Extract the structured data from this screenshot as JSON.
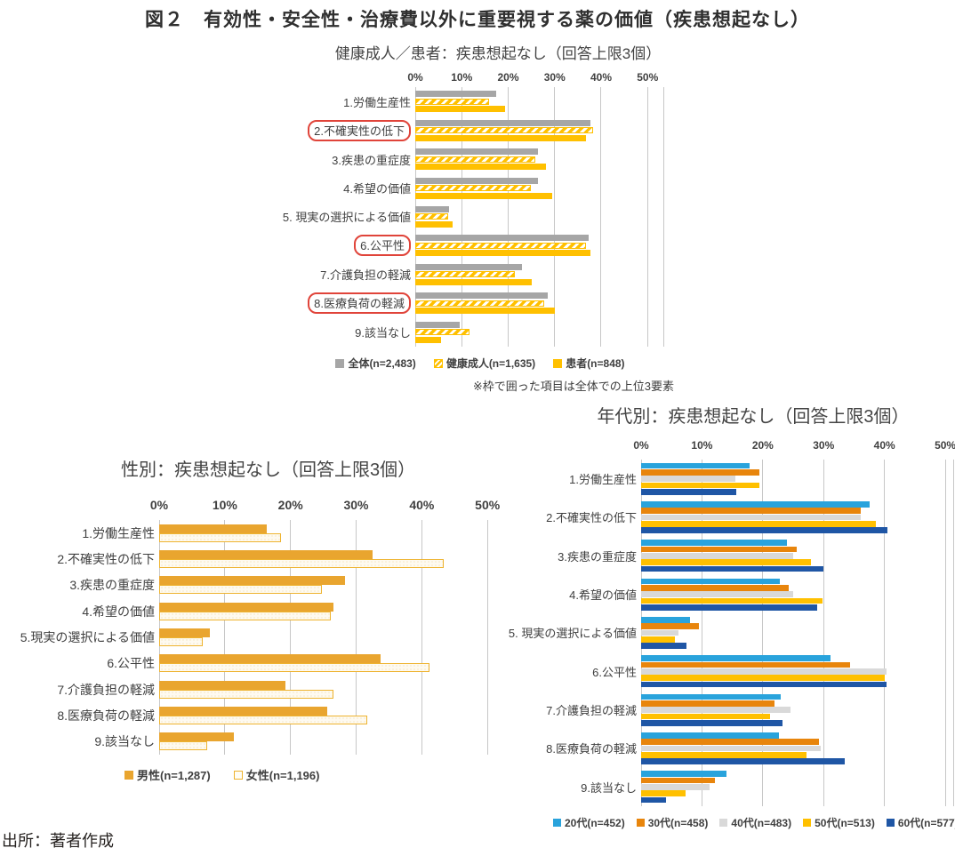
{
  "page": {
    "title": "図２　有効性・安全性・治療費以外に重要視する薬の価値（疾患想起なし）",
    "source": "出所：著者作成"
  },
  "colors": {
    "overall_gray": "#a6a6a6",
    "gold": "#ffc000",
    "male_gold": "#e9a52f",
    "female_border_gold": "#eeb32f",
    "age20_blue": "#29a3dc",
    "age30_orange": "#e8850c",
    "age40_gray": "#d9d9d9",
    "age50_gold": "#ffc000",
    "age60_blue": "#1f56a5",
    "highlight_box_red": "#e0443a",
    "gridline": "#c7c7c7"
  },
  "chart_data": [
    {
      "id": "adult-patient",
      "type": "bar",
      "orientation": "horizontal",
      "title": "健康成人／患者：疾患想起なし（回答上限3個）",
      "note": "※枠で囲った項目は全体での上位3要素",
      "categories": [
        "1.労働生産性",
        "2.不確実性の低下",
        "3.疾患の重症度",
        "4.希望の価値",
        "5. 現実の選択による価値",
        "6.公平性",
        "7.介護負担の軽減",
        "8.医療負荷の軽減",
        "9.該当なし"
      ],
      "boxed_categories": [
        "2.不確実性の低下",
        "6.公平性",
        "8.医療負荷の軽減"
      ],
      "axis": {
        "tick_labels": [
          "0%",
          "10%",
          "20%",
          "30%",
          "40%",
          "50%"
        ],
        "tick_values": [
          0,
          10,
          20,
          30,
          40,
          50
        ],
        "xlim": [
          0,
          53.4
        ],
        "grid": true
      },
      "unit": "%",
      "series": [
        {
          "name": "全体(n=2,483)",
          "style": "solid",
          "color": "#a6a6a6",
          "values": [
            17.4,
            37.7,
            26.5,
            26.5,
            7.2,
            37.4,
            22.9,
            28.6,
            9.6
          ]
        },
        {
          "name": "健康成人(n=1,635)",
          "style": "hatched",
          "color": "#ffc000",
          "values": [
            15.8,
            38.2,
            25.9,
            24.8,
            7.1,
            36.7,
            21.5,
            27.8,
            11.7
          ]
        },
        {
          "name": "患者(n=848)",
          "style": "solid",
          "color": "#ffc000",
          "values": [
            19.3,
            36.8,
            28.2,
            29.4,
            8.0,
            37.7,
            25.1,
            30.0,
            5.5
          ]
        }
      ]
    },
    {
      "id": "gender",
      "type": "bar",
      "orientation": "horizontal",
      "title": "性別：疾患想起なし（回答上限3個）",
      "categories": [
        "1.労働生産性",
        "2.不確実性の低下",
        "3.疾患の重症度",
        "4.希望の価値",
        "5.現実の選択による価値",
        "6.公平性",
        "7.介護負担の軽減",
        "8.医療負荷の軽減",
        "9.該当なし"
      ],
      "axis": {
        "tick_labels": [
          "0%",
          "10%",
          "20%",
          "30%",
          "40%",
          "50%"
        ],
        "tick_values": [
          0,
          10,
          20,
          30,
          40,
          50
        ],
        "xlim": [
          0,
          51.6
        ],
        "grid": true
      },
      "unit": "%",
      "series": [
        {
          "name": "男性(n=1,287)",
          "style": "solid",
          "color": "#e9a52f",
          "values": [
            16.4,
            32.5,
            28.3,
            26.6,
            7.7,
            33.7,
            19.2,
            25.6,
            11.4
          ]
        },
        {
          "name": "女性(n=1,196)",
          "style": "outline",
          "color": "#eeb32f",
          "values": [
            18.6,
            43.3,
            24.8,
            26.2,
            6.6,
            41.2,
            26.6,
            31.7,
            7.3
          ]
        }
      ]
    },
    {
      "id": "age-group",
      "type": "bar",
      "orientation": "horizontal",
      "title": "年代別：疾患想起なし（回答上限3個）",
      "categories": [
        "1.労働生産性",
        "2.不確実性の低下",
        "3.疾患の重症度",
        "4.希望の価値",
        "5. 現実の選択による価値",
        "6.公平性",
        "7.介護負担の軽減",
        "8.医療負荷の軽減",
        "9.該当なし"
      ],
      "axis": {
        "tick_labels": [
          "0%",
          "10%",
          "20%",
          "30%",
          "40%",
          "50%"
        ],
        "tick_values": [
          0,
          10,
          20,
          30,
          40,
          50
        ],
        "xlim": [
          0,
          51.3
        ],
        "grid": true
      },
      "unit": "%",
      "series": [
        {
          "name": "20代(n=452)",
          "style": "solid",
          "color": "#29a3dc",
          "values": [
            17.9,
            37.5,
            23.9,
            22.8,
            8.0,
            31.1,
            23.0,
            22.6,
            14.0
          ]
        },
        {
          "name": "30代(n=458)",
          "style": "solid",
          "color": "#e8850c",
          "values": [
            19.4,
            36.1,
            25.6,
            24.2,
            9.5,
            34.3,
            21.9,
            29.2,
            12.2
          ]
        },
        {
          "name": "40代(n=483)",
          "style": "solid",
          "color": "#d9d9d9",
          "values": [
            15.5,
            36.1,
            25.0,
            25.0,
            6.2,
            40.3,
            24.5,
            29.5,
            11.2
          ]
        },
        {
          "name": "50代(n=513)",
          "style": "solid",
          "color": "#ffc000",
          "values": [
            19.5,
            38.6,
            27.9,
            29.8,
            5.6,
            40.1,
            21.2,
            27.2,
            7.3
          ]
        },
        {
          "name": "60代(n=577)",
          "style": "solid",
          "color": "#1f56a5",
          "values": [
            15.6,
            40.5,
            29.9,
            29.0,
            7.5,
            40.3,
            23.2,
            33.4,
            4.1
          ]
        }
      ]
    }
  ]
}
